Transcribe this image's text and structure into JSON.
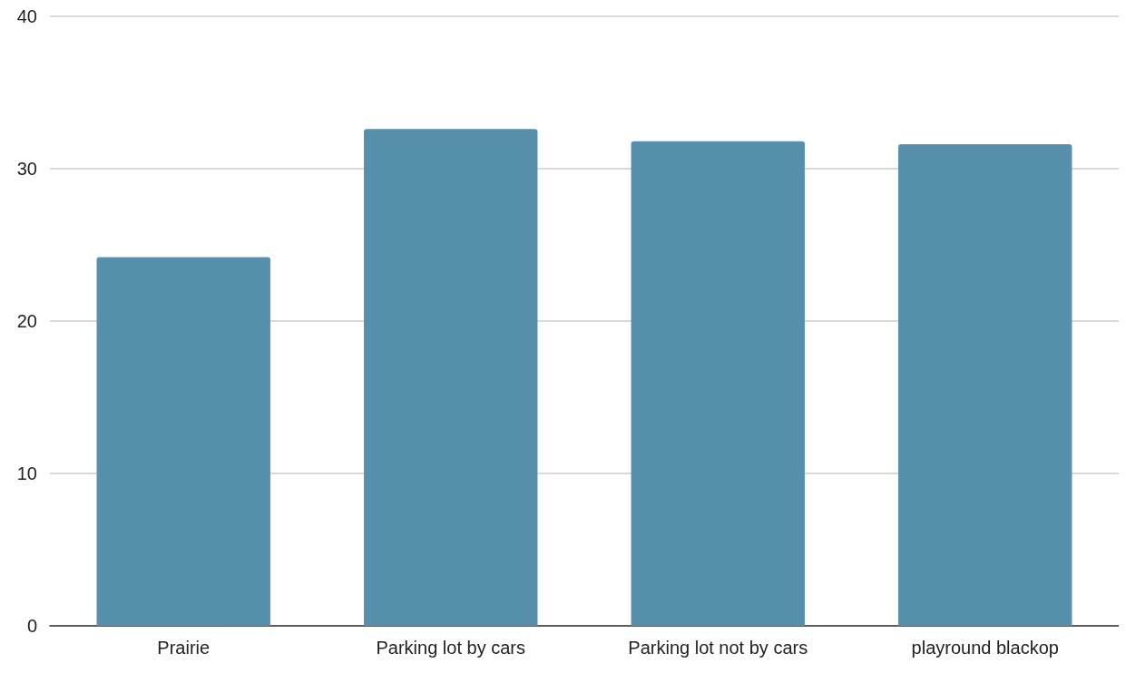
{
  "chart_data": {
    "type": "bar",
    "categories": [
      "Prairie",
      "Parking lot by cars",
      "Parking lot not by cars",
      "playround blackop"
    ],
    "values": [
      24.2,
      32.6,
      31.8,
      31.6
    ],
    "color": "#5790ad",
    "ylim": [
      0,
      40
    ],
    "yticks": [
      0,
      10,
      20,
      30,
      40
    ],
    "grid": "y"
  }
}
